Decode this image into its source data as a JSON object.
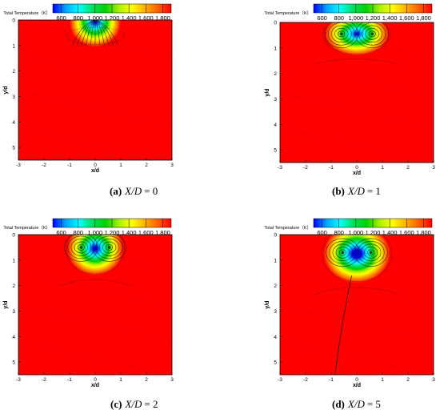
{
  "colors": {
    "background": "#ff0000",
    "colormap": [
      "#0000ff",
      "#00a8ff",
      "#00ffff",
      "#00e060",
      "#00d000",
      "#a8f000",
      "#ffff00",
      "#ffb000",
      "#ff6000",
      "#ff0000"
    ],
    "streamline": "#1a1a1a"
  },
  "colorbar": {
    "title": "Total Temperature（K）",
    "ticks": [
      "600",
      "800",
      "1,000",
      "1,200",
      "1,400",
      "1,600",
      "1,800"
    ],
    "range": [
      500,
      1900
    ]
  },
  "chart_data": [
    {
      "type": "heatmap",
      "panel": "a",
      "caption_label": "(a)",
      "caption_var": "X/D",
      "caption_value": "= 0",
      "xlabel": "x/d",
      "ylabel": "y/d",
      "xlim": [
        -3,
        3
      ],
      "ylim": [
        5.5,
        0
      ],
      "xticks": [
        "-3",
        "-2",
        "-1",
        "0",
        "1",
        "2",
        "3"
      ],
      "yticks": [
        "0",
        "1",
        "2",
        "3",
        "4",
        "5"
      ],
      "cold_core": {
        "x": 0,
        "y": 0.1,
        "rx": 1.0,
        "ry": 0.95,
        "min_temperature": 550
      },
      "vortices": []
    },
    {
      "type": "heatmap",
      "panel": "b",
      "caption_label": "(b)",
      "caption_var": "X/D",
      "caption_value": "= 1",
      "xlabel": "x/d",
      "ylabel": "y/d",
      "xlim": [
        -3,
        3
      ],
      "ylim": [
        5.5,
        0
      ],
      "xticks": [
        "-3",
        "-2",
        "-1",
        "0",
        "1",
        "2",
        "3"
      ],
      "yticks": [
        "0",
        "1",
        "2",
        "3",
        "4",
        "5"
      ],
      "cold_core": {
        "x": 0,
        "y": 0.45,
        "rx": 1.25,
        "ry": 0.85,
        "min_temperature": 550
      },
      "vortices": [
        {
          "x": -0.6,
          "y": 0.45
        },
        {
          "x": 0.6,
          "y": 0.45
        }
      ]
    },
    {
      "type": "heatmap",
      "panel": "c",
      "caption_label": "(c)",
      "caption_var": "X/D",
      "caption_value": "= 2",
      "xlabel": "x/d",
      "ylabel": "y/d",
      "xlim": [
        -3,
        3
      ],
      "ylim": [
        5.5,
        0
      ],
      "xticks": [
        "-3",
        "-2",
        "-1",
        "0",
        "1",
        "2",
        "3"
      ],
      "yticks": [
        "0",
        "1",
        "2",
        "3",
        "4",
        "5"
      ],
      "cold_core": {
        "x": 0,
        "y": 0.55,
        "rx": 1.1,
        "ry": 1.05,
        "min_temperature": 600
      },
      "vortices": [
        {
          "x": -0.55,
          "y": 0.5
        },
        {
          "x": 0.55,
          "y": 0.5
        }
      ]
    },
    {
      "type": "heatmap",
      "panel": "d",
      "caption_label": "(d)",
      "caption_var": "X/D",
      "caption_value": "= 5",
      "xlabel": "x/d",
      "ylabel": "y/d",
      "xlim": [
        -3,
        3
      ],
      "ylim": [
        5.5,
        0
      ],
      "xticks": [
        "-3",
        "-2",
        "-1",
        "0",
        "1",
        "2",
        "3"
      ],
      "yticks": [
        "0",
        "1",
        "2",
        "3",
        "4",
        "5"
      ],
      "cold_core": {
        "x": 0,
        "y": 0.75,
        "rx": 1.3,
        "ry": 1.15,
        "min_temperature": 700
      },
      "vortices": [
        {
          "x": -0.55,
          "y": 0.7
        },
        {
          "x": 0.55,
          "y": 0.7
        }
      ]
    }
  ]
}
